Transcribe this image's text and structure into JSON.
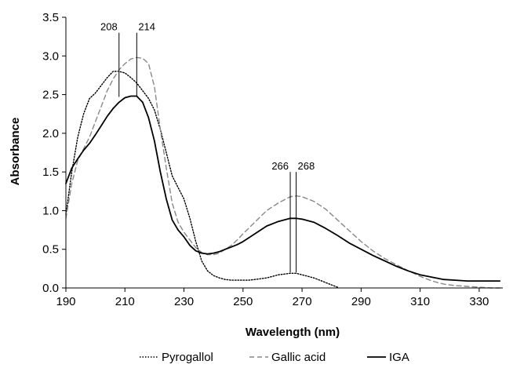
{
  "chart_data": {
    "type": "line",
    "xlabel": "Wavelength (nm)",
    "ylabel": "Absorbance",
    "xlim": [
      190,
      338
    ],
    "ylim": [
      0,
      3.5
    ],
    "x_ticks": [
      "190",
      "210",
      "230",
      "250",
      "270",
      "290",
      "310",
      "330"
    ],
    "y_ticks": [
      "0.0",
      "0.5",
      "1.0",
      "1.5",
      "2.0",
      "2.5",
      "3.0",
      "3.5"
    ],
    "grid": false,
    "legend_placement": "bottom",
    "series": [
      {
        "name": "Pyrogallol",
        "style": "dotted",
        "color": "#000000",
        "x": [
          190,
          192,
          194,
          196,
          198,
          200,
          202,
          204,
          206,
          208,
          210,
          212,
          214,
          216,
          218,
          220,
          222,
          224,
          226,
          228,
          230,
          232,
          234,
          236,
          238,
          240,
          242,
          244,
          246,
          248,
          250,
          252,
          254,
          256,
          258,
          260,
          262,
          264,
          266,
          268,
          270,
          272,
          274,
          276,
          278,
          280,
          282
        ],
        "y": [
          0.95,
          1.5,
          1.95,
          2.25,
          2.45,
          2.52,
          2.62,
          2.72,
          2.8,
          2.8,
          2.78,
          2.72,
          2.65,
          2.55,
          2.45,
          2.3,
          2.05,
          1.75,
          1.45,
          1.3,
          1.15,
          0.9,
          0.6,
          0.35,
          0.22,
          0.16,
          0.13,
          0.11,
          0.1,
          0.1,
          0.1,
          0.1,
          0.11,
          0.12,
          0.13,
          0.15,
          0.17,
          0.18,
          0.19,
          0.19,
          0.17,
          0.15,
          0.13,
          0.1,
          0.07,
          0.04,
          0.01
        ]
      },
      {
        "name": "Gallic acid",
        "style": "dashed",
        "color": "#888888",
        "x": [
          190,
          192,
          194,
          196,
          198,
          200,
          202,
          204,
          206,
          208,
          210,
          212,
          214,
          216,
          218,
          220,
          222,
          224,
          226,
          228,
          230,
          232,
          234,
          236,
          238,
          240,
          242,
          244,
          246,
          248,
          250,
          254,
          258,
          262,
          266,
          268,
          270,
          274,
          278,
          282,
          286,
          290,
          294,
          298,
          302,
          306,
          310,
          314,
          318,
          322,
          326,
          330,
          334,
          337
        ],
        "y": [
          0.9,
          1.35,
          1.65,
          1.8,
          1.95,
          2.15,
          2.35,
          2.55,
          2.7,
          2.82,
          2.9,
          2.96,
          2.98,
          2.97,
          2.9,
          2.6,
          2.05,
          1.55,
          1.1,
          0.85,
          0.72,
          0.62,
          0.52,
          0.46,
          0.43,
          0.43,
          0.45,
          0.5,
          0.55,
          0.62,
          0.7,
          0.85,
          1.0,
          1.1,
          1.18,
          1.19,
          1.18,
          1.12,
          1.02,
          0.88,
          0.74,
          0.6,
          0.48,
          0.38,
          0.3,
          0.22,
          0.15,
          0.09,
          0.05,
          0.03,
          0.02,
          0.01,
          0.0,
          0.0
        ]
      },
      {
        "name": "IGA",
        "style": "solid",
        "color": "#000000",
        "x": [
          190,
          192,
          194,
          196,
          198,
          200,
          202,
          204,
          206,
          208,
          210,
          212,
          214,
          216,
          218,
          220,
          222,
          224,
          226,
          228,
          230,
          232,
          234,
          236,
          238,
          240,
          242,
          244,
          246,
          248,
          250,
          254,
          258,
          262,
          266,
          268,
          270,
          274,
          278,
          282,
          286,
          290,
          294,
          298,
          302,
          306,
          310,
          314,
          318,
          322,
          326,
          330,
          334,
          337
        ],
        "y": [
          1.35,
          1.55,
          1.67,
          1.78,
          1.87,
          1.98,
          2.1,
          2.22,
          2.32,
          2.4,
          2.46,
          2.48,
          2.48,
          2.4,
          2.2,
          1.9,
          1.5,
          1.15,
          0.88,
          0.75,
          0.66,
          0.55,
          0.48,
          0.45,
          0.44,
          0.45,
          0.47,
          0.5,
          0.53,
          0.56,
          0.6,
          0.7,
          0.8,
          0.86,
          0.9,
          0.9,
          0.89,
          0.85,
          0.77,
          0.68,
          0.58,
          0.5,
          0.42,
          0.35,
          0.28,
          0.22,
          0.17,
          0.14,
          0.11,
          0.1,
          0.09,
          0.09,
          0.09,
          0.09
        ]
      }
    ],
    "annotations": [
      {
        "label": "208",
        "x": 208,
        "y_from": 2.47,
        "y_to": 3.3,
        "label_side": "left"
      },
      {
        "label": "214",
        "x": 214,
        "y_from": 2.47,
        "y_to": 3.3,
        "label_side": "right"
      },
      {
        "label": "266",
        "x": 266,
        "y_from": 0.2,
        "y_to": 1.5,
        "label_side": "left"
      },
      {
        "label": "268",
        "x": 268,
        "y_from": 0.2,
        "y_to": 1.5,
        "label_side": "right"
      }
    ]
  }
}
